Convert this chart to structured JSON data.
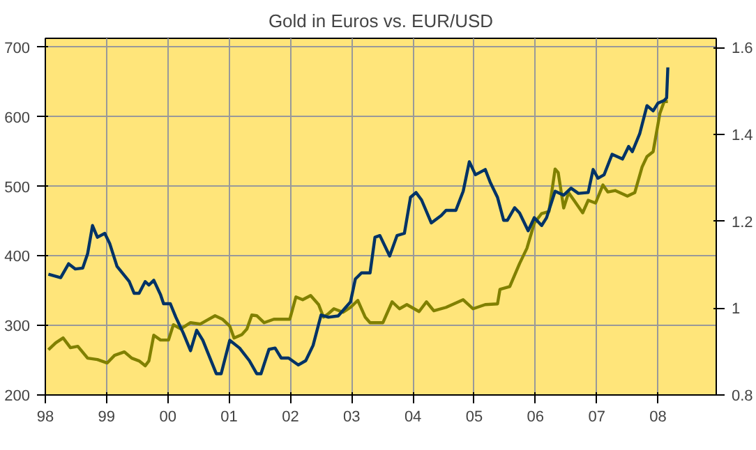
{
  "chart_data": {
    "type": "line",
    "title": "Gold in Euros vs. EUR/USD",
    "xlim": [
      1998,
      2008.95
    ],
    "xticks": [
      {
        "value": 1998,
        "label": "98"
      },
      {
        "value": 1999,
        "label": "99"
      },
      {
        "value": 2000,
        "label": "00"
      },
      {
        "value": 2001,
        "label": "01"
      },
      {
        "value": 2002,
        "label": "02"
      },
      {
        "value": 2003,
        "label": "03"
      },
      {
        "value": 2004,
        "label": "04"
      },
      {
        "value": 2005,
        "label": "05"
      },
      {
        "value": 2006,
        "label": "06"
      },
      {
        "value": 2007,
        "label": "07"
      },
      {
        "value": 2008,
        "label": "08"
      }
    ],
    "ylim": [
      200,
      713
    ],
    "yticks": [
      200,
      300,
      400,
      500,
      600,
      700
    ],
    "y2lim": [
      0.8,
      1.621
    ],
    "y2ticks": [
      0.8,
      1,
      1.2,
      1.4,
      1.6
    ],
    "grid": true,
    "series": [
      {
        "color": "#808000",
        "x": [
          1998.05,
          1998.17,
          1998.29,
          1998.41,
          1998.53,
          1998.69,
          1998.85,
          1999.01,
          1999.13,
          1999.29,
          1999.41,
          1999.53,
          1999.63,
          1999.69,
          1999.77,
          1999.88,
          2000.01,
          2000.09,
          2000.21,
          2000.37,
          2000.53,
          2000.65,
          2000.77,
          2000.89,
          2001.01,
          2001.08,
          2001.21,
          2001.29,
          2001.37,
          2001.45,
          2001.57,
          2001.73,
          2001.99,
          2002.09,
          2002.2,
          2002.33,
          2002.46,
          2002.54,
          2002.62,
          2002.71,
          2002.86,
          2002.98,
          2003.1,
          2003.22,
          2003.3,
          2003.51,
          2003.66,
          2003.78,
          2003.9,
          2004.1,
          2004.22,
          2004.34,
          2004.54,
          2004.82,
          2004.98,
          2005.18,
          2005.38,
          2005.42,
          2005.58,
          2005.74,
          2005.86,
          2005.98,
          2006.1,
          2006.22,
          2006.32,
          2006.37,
          2006.46,
          2006.54,
          2006.62,
          2006.77,
          2006.86,
          2006.98,
          2007.1,
          2007.18,
          2007.3,
          2007.5,
          2007.62,
          2007.74,
          2007.82,
          2007.92,
          2008.03,
          2008.1,
          2008.16
        ],
        "values": [
          265,
          275,
          282,
          268,
          270,
          253,
          251,
          246,
          257,
          262,
          253,
          249,
          242,
          249,
          286,
          279,
          279,
          301,
          295,
          304,
          302,
          308,
          314,
          309,
          299,
          282,
          287,
          295,
          315,
          314,
          304,
          309,
          309,
          341,
          337,
          343,
          330,
          312,
          317,
          324,
          319,
          326,
          336,
          312,
          304,
          304,
          334,
          324,
          330,
          320,
          334,
          321,
          326,
          337,
          324,
          330,
          331,
          352,
          356,
          389,
          411,
          447,
          461,
          464,
          525,
          520,
          469,
          491,
          481,
          462,
          480,
          476,
          502,
          492,
          494,
          486,
          491,
          528,
          543,
          550,
          605,
          622,
          622
        ]
      },
      {
        "color": "#003366",
        "axis": "y2",
        "x": [
          1998.05,
          1998.25,
          1998.38,
          1998.49,
          1998.61,
          1998.69,
          1998.77,
          1998.85,
          1998.97,
          1999.05,
          1999.17,
          1999.37,
          1999.45,
          1999.53,
          1999.63,
          1999.69,
          1999.77,
          1999.88,
          1999.93,
          2000.04,
          2000.13,
          2000.25,
          2000.37,
          2000.47,
          2000.57,
          2000.79,
          2000.87,
          2001.01,
          2001.17,
          2001.33,
          2001.45,
          2001.52,
          2001.65,
          2001.75,
          2001.85,
          2001.97,
          2002.13,
          2002.25,
          2002.37,
          2002.5,
          2002.62,
          2002.78,
          2002.98,
          2003.06,
          2003.16,
          2003.3,
          2003.38,
          2003.46,
          2003.62,
          2003.74,
          2003.86,
          2003.96,
          2004.05,
          2004.14,
          2004.3,
          2004.46,
          2004.54,
          2004.7,
          2004.82,
          2004.92,
          2005.02,
          2005.18,
          2005.26,
          2005.38,
          2005.48,
          2005.54,
          2005.66,
          2005.74,
          2005.88,
          2005.98,
          2006.1,
          2006.18,
          2006.32,
          2006.46,
          2006.58,
          2006.7,
          2006.86,
          2006.94,
          2007.02,
          2007.12,
          2007.25,
          2007.42,
          2007.52,
          2007.58,
          2007.7,
          2007.82,
          2007.92,
          2008.0,
          2008.1,
          2008.14,
          2008.16
        ],
        "values": [
          1.078,
          1.07,
          1.102,
          1.09,
          1.092,
          1.125,
          1.19,
          1.163,
          1.172,
          1.149,
          1.096,
          1.061,
          1.034,
          1.034,
          1.061,
          1.053,
          1.064,
          1.031,
          1.01,
          1.01,
          0.979,
          0.943,
          0.902,
          0.949,
          0.926,
          0.849,
          0.849,
          0.926,
          0.908,
          0.879,
          0.849,
          0.849,
          0.905,
          0.908,
          0.885,
          0.885,
          0.869,
          0.879,
          0.914,
          0.984,
          0.979,
          0.982,
          1.014,
          1.067,
          1.081,
          1.081,
          1.163,
          1.167,
          1.12,
          1.167,
          1.172,
          1.255,
          1.266,
          1.249,
          1.196,
          1.213,
          1.225,
          1.225,
          1.269,
          1.337,
          1.307,
          1.319,
          1.29,
          1.255,
          1.202,
          1.202,
          1.231,
          1.219,
          1.178,
          1.208,
          1.19,
          1.208,
          1.269,
          1.26,
          1.276,
          1.264,
          1.266,
          1.319,
          1.299,
          1.307,
          1.354,
          1.343,
          1.372,
          1.36,
          1.401,
          1.466,
          1.454,
          1.472,
          1.478,
          1.484,
          1.554
        ]
      }
    ]
  }
}
